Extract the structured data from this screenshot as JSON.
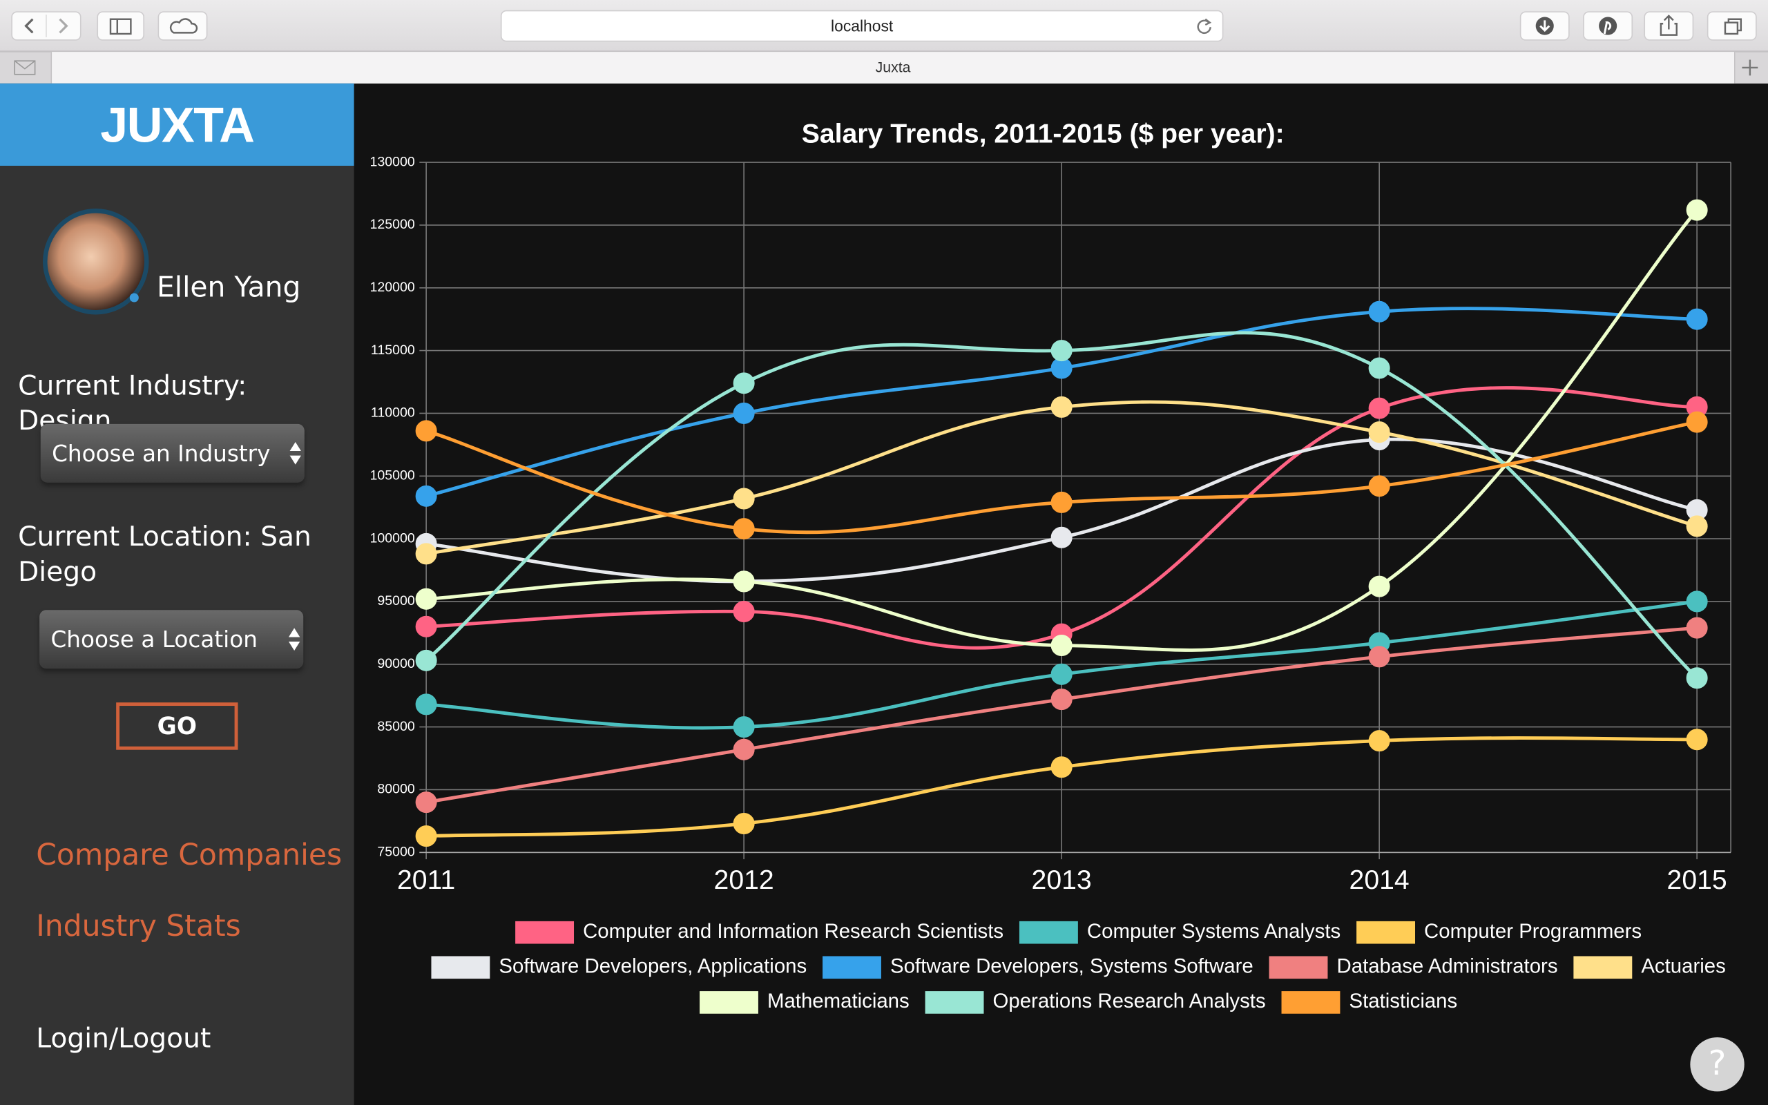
{
  "browser": {
    "url": "localhost",
    "tab_title": "Juxta"
  },
  "sidebar": {
    "logo": "JUXTA",
    "user_name": "Ellen Yang",
    "industry_label": "Current Industry: Design",
    "industry_select": "Choose an Industry",
    "location_label": "Current Location: San Diego",
    "location_select": "Choose a Location",
    "go_button": "GO",
    "links": [
      "Compare Companies",
      "Industry Stats"
    ],
    "login": "Login/Logout"
  },
  "help_button": "?",
  "chart_data": {
    "type": "line",
    "title": "Salary Trends, 2011-2015 ($ per year):",
    "categories": [
      "2011",
      "2012",
      "2013",
      "2014",
      "2015"
    ],
    "ylim": [
      75000,
      130000
    ],
    "yticks": [
      75000,
      80000,
      85000,
      90000,
      95000,
      100000,
      105000,
      110000,
      115000,
      120000,
      125000,
      130000
    ],
    "grid": true,
    "series": [
      {
        "name": "Computer and Information Research Scientists",
        "color": "#ff6384",
        "values": [
          93000,
          94200,
          92400,
          110400,
          110500
        ]
      },
      {
        "name": "Computer Systems Analysts",
        "color": "#4bc0c0",
        "values": [
          86800,
          85000,
          89200,
          91700,
          95000
        ]
      },
      {
        "name": "Computer Programmers",
        "color": "#ffcd56",
        "values": [
          76300,
          77300,
          81800,
          83900,
          84000
        ]
      },
      {
        "name": "Software Developers, Applications",
        "color": "#e7e9ed",
        "values": [
          99600,
          96600,
          100100,
          107900,
          102300
        ]
      },
      {
        "name": "Software Developers, Systems Software",
        "color": "#36a2eb",
        "values": [
          103400,
          110000,
          113600,
          118100,
          117500
        ]
      },
      {
        "name": "Database Administrators",
        "color": "#f08080",
        "values": [
          79000,
          83200,
          87200,
          90600,
          92900
        ]
      },
      {
        "name": "Actuaries",
        "color": "#ffe08a",
        "values": [
          98800,
          103200,
          110500,
          108500,
          101000
        ]
      },
      {
        "name": "Mathematicians",
        "color": "#eeffcc",
        "values": [
          95200,
          96600,
          91500,
          96200,
          126200
        ]
      },
      {
        "name": "Operations Research Analysts",
        "color": "#99e6d4",
        "values": [
          90300,
          112400,
          115000,
          113600,
          88900
        ]
      },
      {
        "name": "Statisticians",
        "color": "#ff9f33",
        "values": [
          108600,
          100800,
          102900,
          104200,
          109300
        ]
      }
    ]
  }
}
